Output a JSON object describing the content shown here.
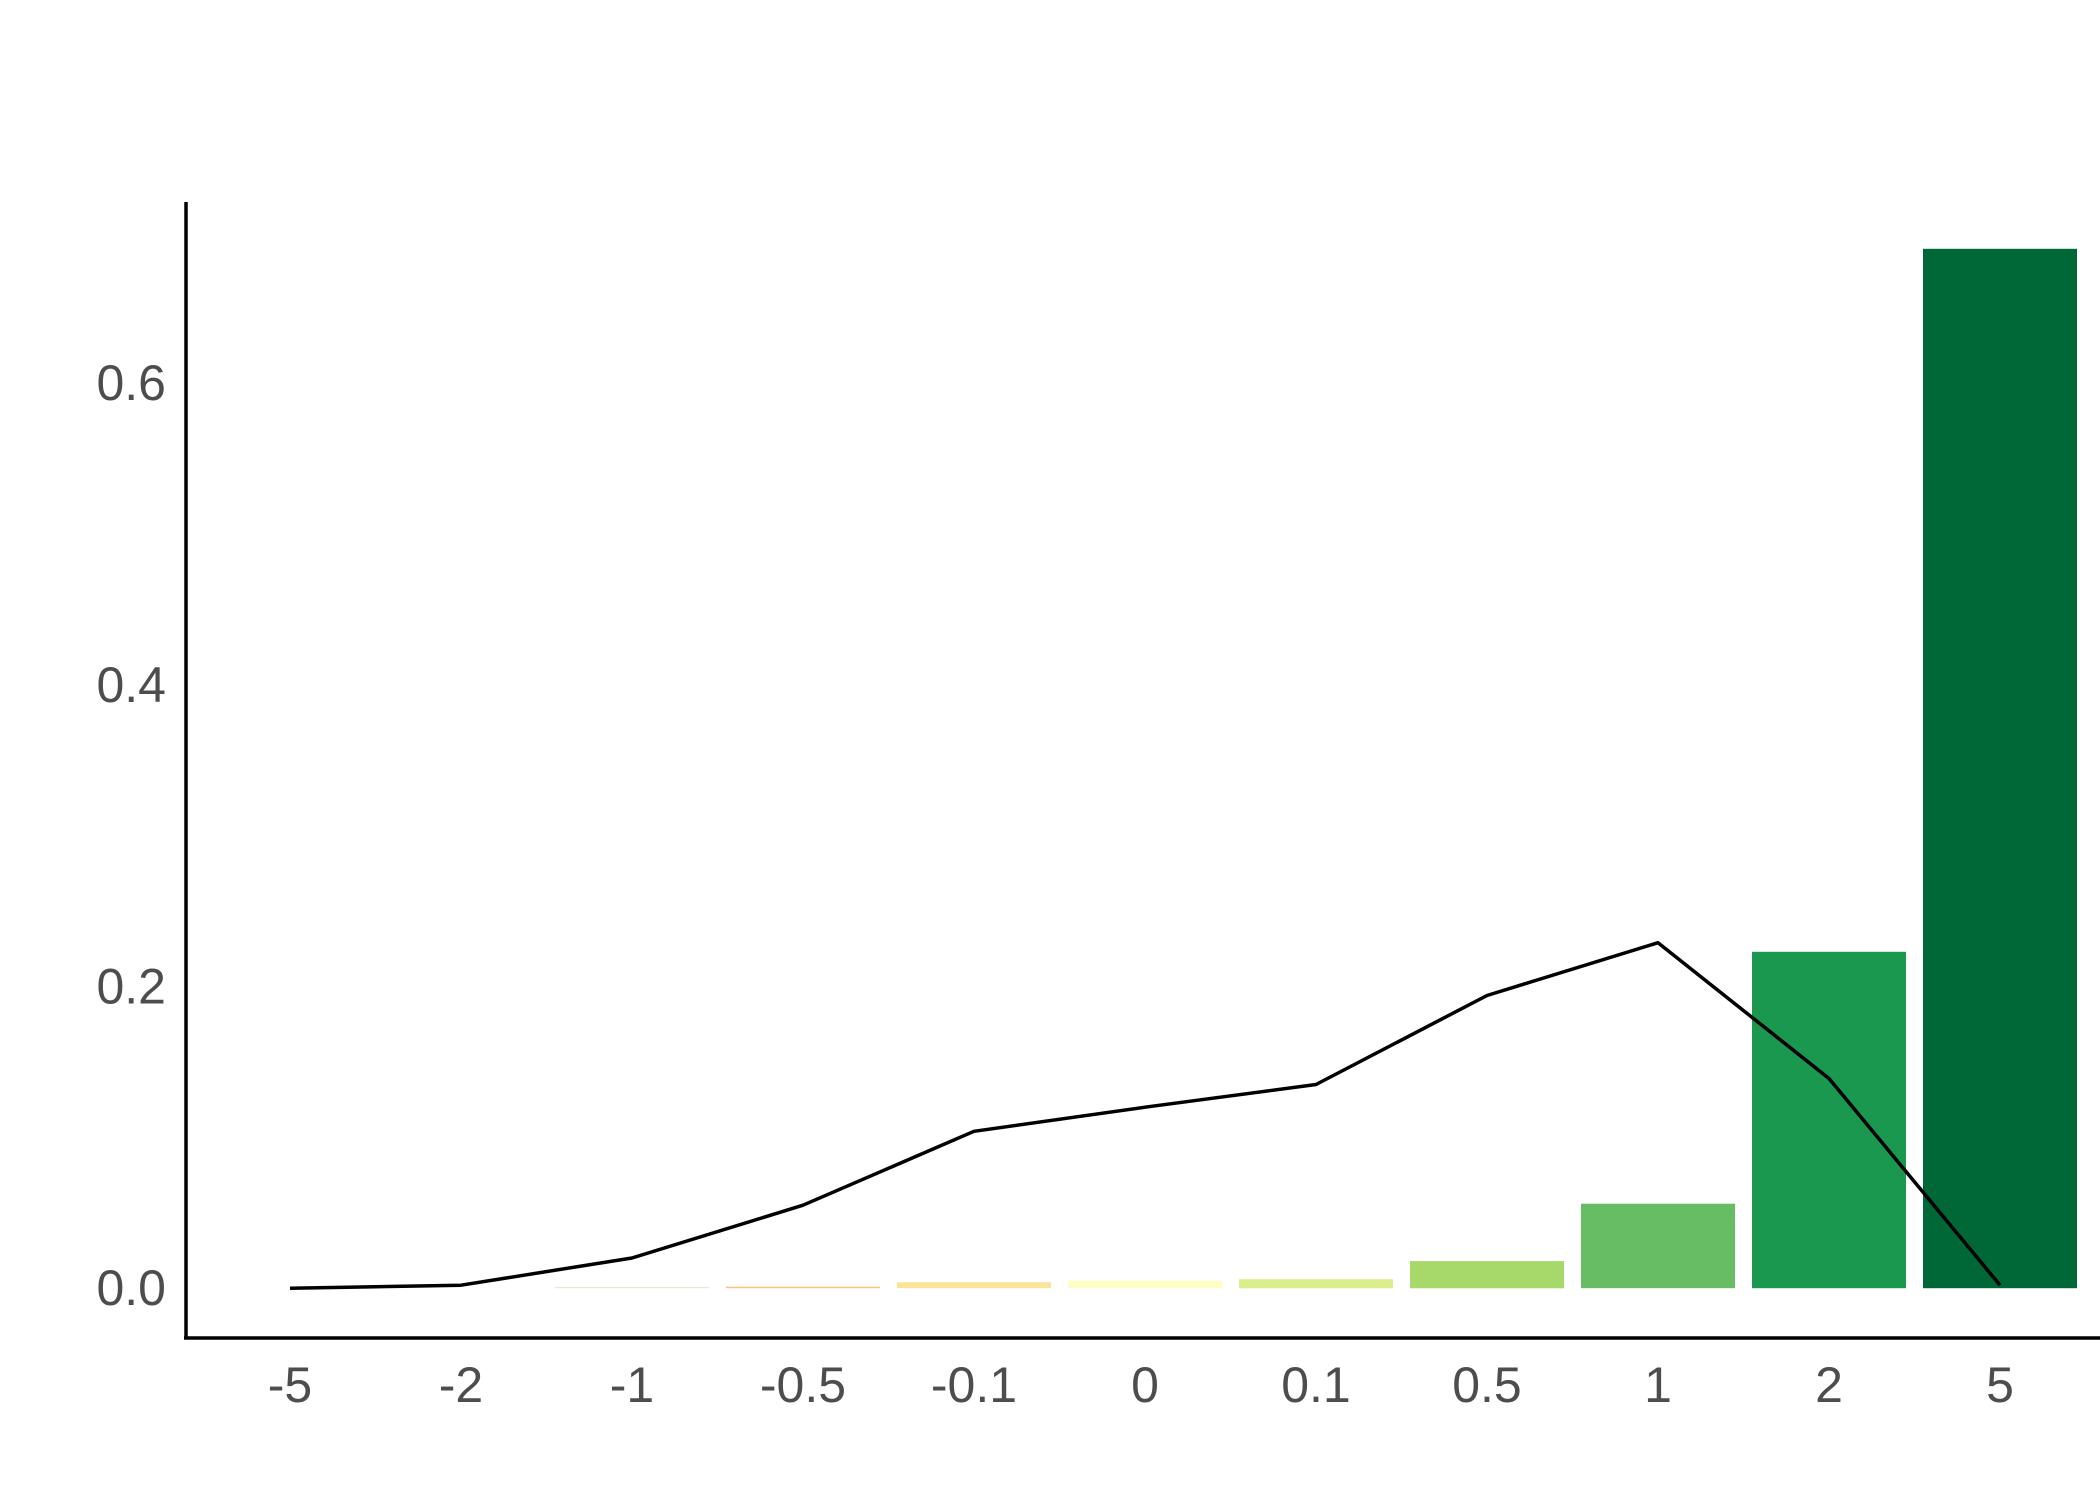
{
  "chart_data": {
    "type": "bar",
    "title": "",
    "xlabel": "",
    "ylabel": "",
    "categories": [
      "-5",
      "-2",
      "-1",
      "-0.5",
      "-0.1",
      "0",
      "0.1",
      "0.5",
      "1",
      "2",
      "5"
    ],
    "bars": {
      "categories": [
        "-1",
        "-0.5",
        "-0.1",
        "0",
        "0.1",
        "0.5",
        "1",
        "2",
        "5"
      ],
      "values": [
        0.0005,
        0.001,
        0.004,
        0.005,
        0.006,
        0.018,
        0.056,
        0.223,
        0.689
      ],
      "colors": [
        "#e8e0c8",
        "#f6c57a",
        "#f9e49a",
        "#fefdc3",
        "#d9ef8b",
        "#a6d96a",
        "#66bd63",
        "#1a9850",
        "#006837"
      ]
    },
    "line": {
      "categories": [
        "-5",
        "-2",
        "-1",
        "-0.5",
        "-0.1",
        "0",
        "0.1",
        "0.5",
        "1",
        "2",
        "5"
      ],
      "values": [
        0.0,
        0.002,
        0.02,
        0.055,
        0.104,
        0.12,
        0.135,
        0.194,
        0.229,
        0.139,
        0.002
      ],
      "color": "#000000"
    },
    "yticks": [
      0.0,
      0.2,
      0.4,
      0.6
    ],
    "ytick_labels": [
      "0.0",
      "0.2",
      "0.4",
      "0.6"
    ],
    "ylim": [
      -0.033,
      0.72
    ],
    "grid": false,
    "legend": "none"
  }
}
